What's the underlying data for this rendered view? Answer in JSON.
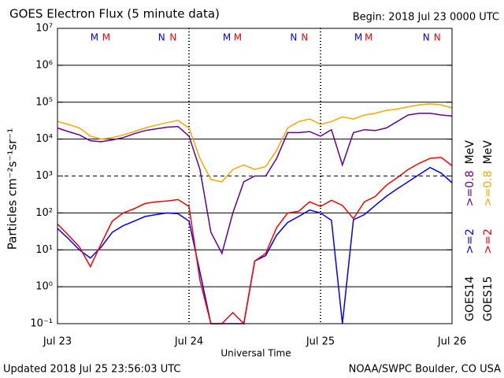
{
  "chart_data": {
    "type": "line",
    "title": "GOES Electron Flux (5 minute data)",
    "subtitle": "Begin: 2018 Jul 23 0000 UTC",
    "footer_left": "Updated 2018 Jul 25 23:56:03 UTC",
    "footer_right": "NOAA/SWPC Boulder, CO USA",
    "x_label": "Universal Time",
    "y_label": "Particles cm⁻²s⁻¹sr⁻¹",
    "log_y": true,
    "grid": true,
    "threshold": 1000,
    "unit": "MeV",
    "satellites": [
      "GOES14",
      "GOES15"
    ],
    "xlim": [
      0,
      72
    ],
    "xticks": [
      {
        "value": 0,
        "label": "Jul 23"
      },
      {
        "value": 24,
        "label": "Jul 24"
      },
      {
        "value": 48,
        "label": "Jul 25"
      },
      {
        "value": 72,
        "label": "Jul 26"
      }
    ],
    "ylim": [
      0.1,
      10000000
    ],
    "yticks": [
      {
        "value": 0.1,
        "label": "10⁻¹"
      },
      {
        "value": 1,
        "label": "10⁰"
      },
      {
        "value": 10,
        "label": "10¹"
      },
      {
        "value": 100,
        "label": "10²"
      },
      {
        "value": 1000,
        "label": "10³"
      },
      {
        "value": 10000,
        "label": "10⁴"
      },
      {
        "value": 100000,
        "label": "10⁵"
      },
      {
        "value": 1000000,
        "label": "10⁶"
      },
      {
        "value": 10000000,
        "label": "10⁷"
      }
    ],
    "annotations": [
      {
        "label": "M",
        "color": "#0000ff",
        "x": 6.75
      },
      {
        "label": "M",
        "color": "#ff0000",
        "x": 8.9
      },
      {
        "label": "N",
        "color": "#0000ff",
        "x": 19
      },
      {
        "label": "N",
        "color": "#ff0000",
        "x": 21.1
      },
      {
        "label": "M",
        "color": "#0000ff",
        "x": 30.9
      },
      {
        "label": "M",
        "color": "#ff0000",
        "x": 32.9
      },
      {
        "label": "N",
        "color": "#0000ff",
        "x": 43.1
      },
      {
        "label": "N",
        "color": "#ff0000",
        "x": 45.1
      },
      {
        "label": "M",
        "color": "#0000ff",
        "x": 54.9
      },
      {
        "label": "M",
        "color": "#ff0000",
        "x": 56.8
      },
      {
        "label": "N",
        "color": "#0000ff",
        "x": 67.3
      },
      {
        "label": "N",
        "color": "#ff0000",
        "x": 69.3
      }
    ],
    "x": [
      0,
      2,
      4,
      6,
      8,
      10,
      12,
      14,
      16,
      18,
      20,
      22,
      24,
      26,
      28,
      30,
      32,
      34,
      36,
      38,
      40,
      42,
      44,
      46,
      48,
      50,
      52,
      54,
      56,
      58,
      60,
      62,
      64,
      66,
      68,
      70,
      72
    ],
    "series": [
      {
        "name": ">=2",
        "color": "#0000ff",
        "values": [
          38,
          20,
          10,
          6,
          12,
          30,
          45,
          60,
          80,
          90,
          100,
          95,
          60,
          2.5,
          0.1,
          0.1,
          0.1,
          0.1,
          5,
          7,
          25,
          55,
          80,
          120,
          100,
          63,
          0.1,
          65,
          90,
          160,
          280,
          450,
          700,
          1100,
          1700,
          1200,
          660
        ]
      },
      {
        "name": ">=0.8",
        "color": "#660099",
        "values": [
          20000,
          16000,
          13000,
          9000,
          8500,
          9500,
          11000,
          14000,
          17000,
          19000,
          21000,
          22000,
          12000,
          1500,
          30,
          8,
          100,
          700,
          1000,
          1000,
          3000,
          15000,
          15000,
          16000,
          12000,
          18000,
          2000,
          15000,
          18000,
          17000,
          20000,
          30000,
          45000,
          50000,
          50000,
          45000,
          42000
        ]
      },
      {
        "name": ">=2",
        "color": "#ff0000",
        "values": [
          50,
          25,
          12,
          3.5,
          15,
          60,
          100,
          130,
          180,
          200,
          210,
          230,
          150,
          1.5,
          0.1,
          0.1,
          0.2,
          0.1,
          5,
          8,
          40,
          100,
          110,
          200,
          150,
          220,
          160,
          70,
          200,
          280,
          560,
          900,
          1500,
          2200,
          3000,
          3200,
          1900
        ]
      },
      {
        "name": ">=0.8",
        "color": "#ffa500",
        "values": [
          30000,
          25000,
          20000,
          12000,
          10000,
          11000,
          13000,
          16000,
          20000,
          24000,
          28000,
          32000,
          20000,
          3000,
          800,
          700,
          1500,
          2000,
          1500,
          1800,
          5000,
          20000,
          30000,
          35000,
          25000,
          30000,
          40000,
          35000,
          45000,
          50000,
          60000,
          65000,
          75000,
          85000,
          90000,
          85000,
          70000
        ]
      }
    ]
  }
}
